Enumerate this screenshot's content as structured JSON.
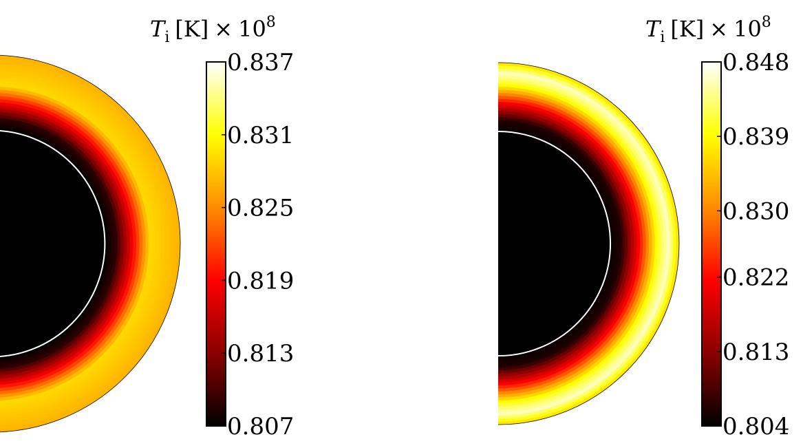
{
  "chart_data": [
    {
      "type": "heatmap",
      "panel": "left",
      "colormap": "hot",
      "colorbar": {
        "title": {
          "symbol": "T",
          "subscript": "i",
          "unit": "[K]",
          "times": "×",
          "base": "10",
          "exponent": "8"
        },
        "ticks": [
          "0.837",
          "0.831",
          "0.825",
          "0.819",
          "0.813",
          "0.807"
        ],
        "range": [
          0.807,
          0.837
        ]
      },
      "field": {
        "description_values": [
          {
            "r": 0.0,
            "value": 0.807
          },
          {
            "r": 0.6,
            "value": 0.807
          },
          {
            "r": 0.66,
            "value": 0.809
          },
          {
            "r": 0.75,
            "value": 0.819
          },
          {
            "r": 0.84,
            "value": 0.829
          },
          {
            "r": 1.0,
            "value": 0.827
          }
        ]
      },
      "annotations": {
        "inner_boundary_circle": true
      }
    },
    {
      "type": "heatmap",
      "panel": "right",
      "colormap": "hot",
      "colorbar": {
        "title": {
          "symbol": "T",
          "subscript": "i",
          "unit": "[K]",
          "times": "×",
          "base": "10",
          "exponent": "8"
        },
        "ticks": [
          "0.848",
          "0.839",
          "0.830",
          "0.822",
          "0.813",
          "0.804"
        ],
        "range": [
          0.804,
          0.848
        ]
      },
      "field": {
        "description_values": [
          {
            "r": 0.0,
            "value": 0.804
          },
          {
            "r": 0.6,
            "value": 0.804
          },
          {
            "r": 0.68,
            "value": 0.806
          },
          {
            "r": 0.78,
            "value": 0.822
          },
          {
            "r": 0.88,
            "value": 0.84
          },
          {
            "r": 0.94,
            "value": 0.846
          },
          {
            "r": 1.0,
            "value": 0.836
          }
        ]
      },
      "annotations": {
        "inner_boundary_circle": true
      }
    }
  ],
  "colors": {
    "hot_stops": [
      "#000000",
      "#8b0000",
      "#ff0000",
      "#ff8c00",
      "#ffff00",
      "#ffffff"
    ],
    "circle_line": "#ffffff",
    "frame": "#000000"
  }
}
